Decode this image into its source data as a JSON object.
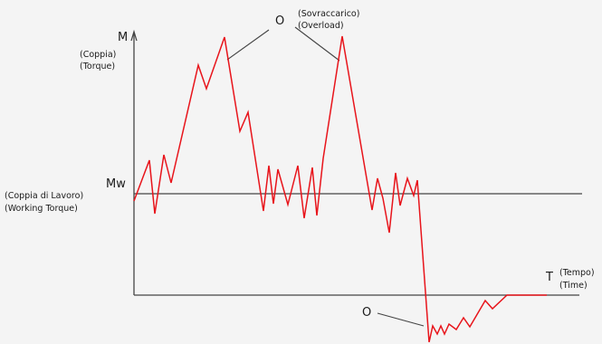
{
  "colors": {
    "background": "#f4f4f4",
    "axis": "#444444",
    "signal": "#e8141b",
    "text": "#1a1a1a"
  },
  "labels": {
    "m_axis": "M",
    "torque_it": "(Coppia)",
    "torque_en": "(Torque)",
    "mw": "Mw",
    "working_it": "(Coppia di Lavoro)",
    "working_en": "(Working Torque)",
    "t_axis": "T",
    "time_it": "(Tempo)",
    "time_en": "(Time)",
    "overload_marker": "O",
    "overload_it": "(Sovraccarico)",
    "overload_en": "(Overload)",
    "underload_marker": "O"
  }
}
